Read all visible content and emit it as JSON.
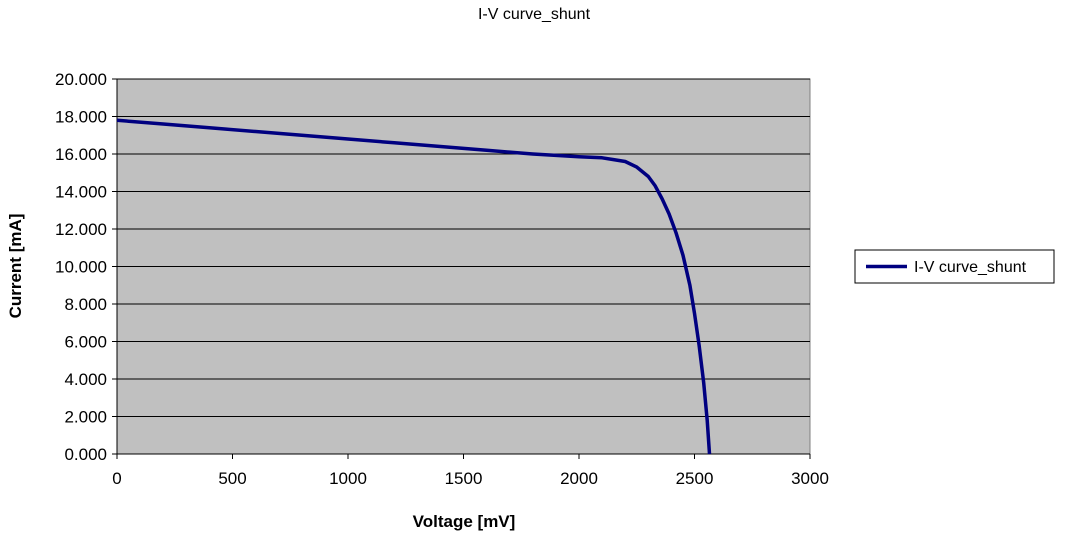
{
  "chart_data": {
    "type": "line",
    "title": "I-V curve_shunt",
    "xlabel": "Voltage  [mV]",
    "ylabel": "Current  [mA]",
    "xlim": [
      0,
      3000
    ],
    "ylim": [
      0,
      20
    ],
    "xticks": [
      0,
      500,
      1000,
      1500,
      2000,
      2500,
      3000
    ],
    "yticks": [
      0,
      2,
      4,
      6,
      8,
      10,
      12,
      14,
      16,
      18,
      20
    ],
    "xtick_labels": [
      "0",
      "500",
      "1000",
      "1500",
      "2000",
      "2500",
      "3000"
    ],
    "ytick_labels": [
      "0.000",
      "2.000",
      "4.000",
      "6.000",
      "8.000",
      "10.000",
      "12.000",
      "14.000",
      "16.000",
      "18.000",
      "20.000"
    ],
    "grid": "horizontal",
    "legend_position": "right",
    "plot_background": "#c0c0c0",
    "series": [
      {
        "name": "I-V curve_shunt",
        "color": "#000080",
        "points": [
          [
            0,
            17.8
          ],
          [
            200,
            17.6
          ],
          [
            400,
            17.4
          ],
          [
            600,
            17.2
          ],
          [
            800,
            17.0
          ],
          [
            1000,
            16.8
          ],
          [
            1200,
            16.6
          ],
          [
            1400,
            16.4
          ],
          [
            1600,
            16.2
          ],
          [
            1800,
            16.0
          ],
          [
            2000,
            15.85
          ],
          [
            2100,
            15.8
          ],
          [
            2150,
            15.7
          ],
          [
            2200,
            15.6
          ],
          [
            2250,
            15.3
          ],
          [
            2300,
            14.8
          ],
          [
            2330,
            14.3
          ],
          [
            2360,
            13.6
          ],
          [
            2390,
            12.8
          ],
          [
            2420,
            11.8
          ],
          [
            2450,
            10.6
          ],
          [
            2480,
            9.0
          ],
          [
            2500,
            7.5
          ],
          [
            2520,
            5.8
          ],
          [
            2540,
            3.8
          ],
          [
            2555,
            1.8
          ],
          [
            2565,
            0.0
          ]
        ]
      }
    ]
  }
}
